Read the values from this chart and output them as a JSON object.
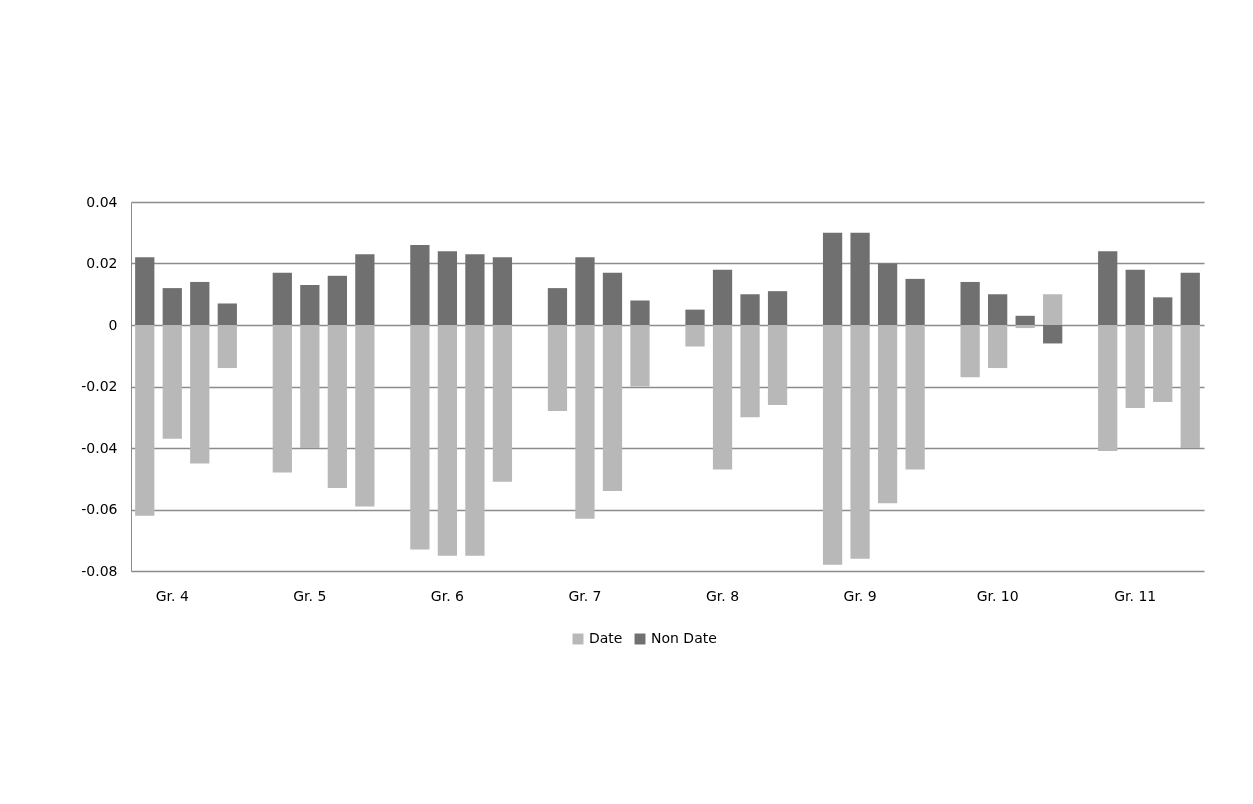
{
  "chart_data": {
    "type": "bar",
    "stacked": true,
    "categories": [
      null,
      "Gr. 4",
      null,
      null,
      null,
      null,
      "Gr. 5",
      null,
      null,
      null,
      null,
      "Gr. 6",
      null,
      null,
      null,
      null,
      "Gr. 7",
      null,
      null,
      null,
      null,
      "Gr. 8",
      null,
      null,
      null,
      null,
      "Gr. 9",
      null,
      null,
      null,
      null,
      "Gr. 10",
      null,
      null,
      null,
      null,
      "Gr. 11",
      null,
      null
    ],
    "series": [
      {
        "name": "Date",
        "color": "#b8b8b8",
        "values": [
          -0.062,
          -0.037,
          -0.045,
          -0.014,
          null,
          -0.048,
          -0.04,
          -0.053,
          -0.059,
          null,
          -0.073,
          -0.075,
          -0.075,
          -0.051,
          null,
          -0.028,
          -0.063,
          -0.054,
          -0.02,
          null,
          -0.007,
          -0.047,
          -0.03,
          -0.026,
          null,
          -0.078,
          -0.076,
          -0.058,
          -0.047,
          null,
          -0.017,
          -0.014,
          -0.001,
          0.01,
          null,
          -0.041,
          -0.027,
          -0.025,
          -0.04
        ]
      },
      {
        "name": "Non Date",
        "color": "#707070",
        "values": [
          0.022,
          0.012,
          0.014,
          0.007,
          null,
          0.017,
          0.013,
          0.016,
          0.023,
          null,
          0.026,
          0.024,
          0.023,
          0.022,
          null,
          0.012,
          0.022,
          0.017,
          0.008,
          null,
          0.005,
          0.018,
          0.01,
          0.011,
          null,
          0.03,
          0.03,
          0.02,
          0.015,
          null,
          0.014,
          0.01,
          0.003,
          -0.006,
          null,
          0.024,
          0.018,
          0.009,
          0.017
        ]
      }
    ],
    "ylim": [
      -0.08,
      0.04
    ],
    "yticks": [
      -0.08,
      -0.06,
      -0.04,
      -0.02,
      0,
      0.02,
      0.04
    ],
    "grid": "y",
    "legend": "bottom"
  }
}
